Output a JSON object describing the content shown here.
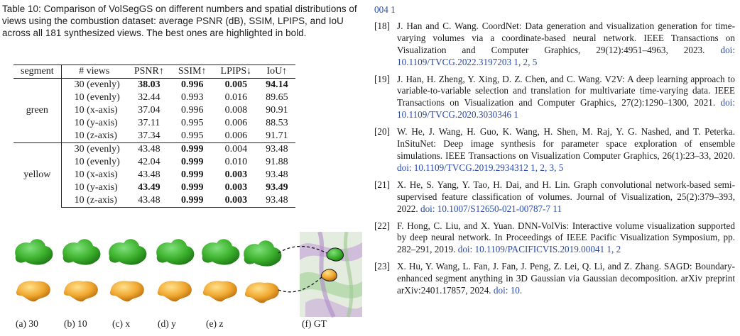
{
  "caption": "Table 10: Comparison of VolSegGS on different numbers and spatial distributions of views using the combustion dataset: average PSNR (dB), SSIM, LPIPS, and IoU across all 181 synthesized views. The best ones are highlighted in bold.",
  "table": {
    "headers": [
      "segment",
      "# views",
      "PSNR↑",
      "SSIM↑",
      "LPIPS↓",
      "IoU↑"
    ],
    "groups": [
      {
        "segment": "green",
        "rows": [
          {
            "views": "30 (evenly)",
            "psnr": "38.03",
            "ssim": "0.996",
            "lpips": "0.005",
            "iou": "94.14",
            "bold": [
              true,
              true,
              true,
              true
            ]
          },
          {
            "views": "10 (evenly)",
            "psnr": "32.44",
            "ssim": "0.993",
            "lpips": "0.016",
            "iou": "89.65",
            "bold": [
              false,
              false,
              false,
              false
            ]
          },
          {
            "views": "10 (x-axis)",
            "psnr": "37.04",
            "ssim": "0.996",
            "lpips": "0.008",
            "iou": "90.91",
            "bold": [
              false,
              false,
              false,
              false
            ]
          },
          {
            "views": "10 (y-axis)",
            "psnr": "37.11",
            "ssim": "0.995",
            "lpips": "0.006",
            "iou": "88.53",
            "bold": [
              false,
              false,
              false,
              false
            ]
          },
          {
            "views": "10 (z-axis)",
            "psnr": "37.34",
            "ssim": "0.995",
            "lpips": "0.006",
            "iou": "91.71",
            "bold": [
              false,
              false,
              false,
              false
            ]
          }
        ]
      },
      {
        "segment": "yellow",
        "rows": [
          {
            "views": "30 (evenly)",
            "psnr": "43.48",
            "ssim": "0.999",
            "lpips": "0.004",
            "iou": "93.48",
            "bold": [
              false,
              true,
              false,
              false
            ]
          },
          {
            "views": "10 (evenly)",
            "psnr": "42.04",
            "ssim": "0.999",
            "lpips": "0.010",
            "iou": "91.88",
            "bold": [
              false,
              true,
              false,
              false
            ]
          },
          {
            "views": "10 (x-axis)",
            "psnr": "43.48",
            "ssim": "0.999",
            "lpips": "0.003",
            "iou": "93.48",
            "bold": [
              false,
              true,
              true,
              false
            ]
          },
          {
            "views": "10 (y-axis)",
            "psnr": "43.49",
            "ssim": "0.999",
            "lpips": "0.003",
            "iou": "93.49",
            "bold": [
              true,
              true,
              true,
              true
            ]
          },
          {
            "views": "10 (z-axis)",
            "psnr": "43.48",
            "ssim": "0.999",
            "lpips": "0.003",
            "iou": "93.48",
            "bold": [
              false,
              true,
              true,
              false
            ]
          }
        ]
      }
    ]
  },
  "figure": {
    "sublabels": [
      "(a) 30",
      "(b) 10",
      "(c) x",
      "(d) y",
      "(e) z",
      "(f) GT"
    ],
    "colors": {
      "green": "#3cb02c",
      "green_dark": "#1f7a18",
      "yellow": "#f0a830",
      "yellow_dark": "#b86f10",
      "gt_bg": "#dfe6d8"
    }
  },
  "references_top": "004 1",
  "references": [
    {
      "num": "[18]",
      "text": "J. Han and C. Wang. CoordNet: Data generation and visualization generation for time-varying volumes via a coordinate-based neural network. IEEE Transactions on Visualization and Computer Graphics, 29(12):4951–4963, 2023.",
      "link": "doi: 10.1109/TVCG.2022.3197203 1, 2, 5"
    },
    {
      "num": "[19]",
      "text": "J. Han, H. Zheng, Y. Xing, D. Z. Chen, and C. Wang. V2V: A deep learning approach to variable-to-variable selection and translation for multivariate time-varying data. IEEE Transactions on Visualization and Computer Graphics, 27(2):1290–1300, 2021.",
      "link": "doi: 10.1109/TVCG.2020.3030346 1"
    },
    {
      "num": "[20]",
      "text": "W. He, J. Wang, H. Guo, K. Wang, H. Shen, M. Raj, Y. G. Nashed, and T. Peterka. InSituNet: Deep image synthesis for parameter space exploration of ensemble simulations. IEEE Transactions on Visualization Computer Graphics, 26(1):23–33, 2020.",
      "link": "doi: 10.1109/TVCG.2019.2934312 1, 2, 3, 5"
    },
    {
      "num": "[21]",
      "text": "X. He, S. Yang, Y. Tao, H. Dai, and H. Lin. Graph convolutional network-based semi-supervised feature classification of volumes. Journal of Visualization, 25(2):379–393, 2022.",
      "link": "doi: 10.1007/S12650-021-00787-7 11"
    },
    {
      "num": "[22]",
      "text": "F. Hong, C. Liu, and X. Yuan. DNN-VolVis: Interactive volume visualization supported by deep neural network. In Proceedings of IEEE Pacific Visualization Symposium, pp. 282–291, 2019.",
      "link": "doi: 10.1109/PACIFICVIS.2019.00041 1, 2"
    },
    {
      "num": "[23]",
      "text": "X. Hu, Y. Wang, L. Fan, J. Fan, J. Peng, Z. Lei, Q. Li, and Z. Zhang. SAGD: Boundary-enhanced segment anything in 3D Gaussian via Gaussian decomposition. arXiv preprint arXiv:2401.17857, 2024.",
      "link": "doi: 10."
    }
  ]
}
